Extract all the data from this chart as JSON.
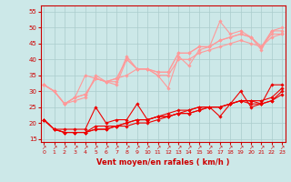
{
  "title": "",
  "xlabel": "Vent moyen/en rafales ( km/h )",
  "ylabel": "",
  "bg_color": "#cce8e8",
  "grid_color": "#aacccc",
  "x": [
    0,
    1,
    2,
    3,
    4,
    5,
    6,
    7,
    8,
    9,
    10,
    11,
    12,
    13,
    14,
    15,
    16,
    17,
    18,
    19,
    20,
    21,
    22,
    23
  ],
  "series_dark": [
    [
      21,
      18,
      18,
      18,
      18,
      25,
      20,
      21,
      21,
      26,
      21,
      22,
      23,
      24,
      24,
      25,
      25,
      22,
      26,
      30,
      25,
      26,
      32,
      32
    ],
    [
      21,
      18,
      17,
      17,
      17,
      19,
      19,
      19,
      20,
      21,
      21,
      22,
      22,
      23,
      23,
      24,
      25,
      25,
      26,
      27,
      27,
      27,
      28,
      31
    ],
    [
      21,
      18,
      17,
      17,
      17,
      18,
      18,
      19,
      20,
      21,
      21,
      22,
      22,
      23,
      24,
      25,
      25,
      25,
      26,
      27,
      27,
      26,
      27,
      30
    ],
    [
      21,
      18,
      17,
      17,
      17,
      18,
      18,
      19,
      19,
      20,
      20,
      21,
      22,
      23,
      23,
      24,
      25,
      25,
      26,
      27,
      26,
      26,
      27,
      29
    ]
  ],
  "series_light": [
    [
      32,
      30,
      26,
      27,
      28,
      35,
      33,
      32,
      40,
      37,
      37,
      35,
      31,
      41,
      38,
      43,
      44,
      52,
      48,
      49,
      47,
      43,
      49,
      50
    ],
    [
      32,
      30,
      26,
      28,
      35,
      34,
      33,
      33,
      41,
      37,
      37,
      36,
      36,
      42,
      42,
      44,
      44,
      46,
      47,
      48,
      47,
      44,
      49,
      49
    ],
    [
      32,
      30,
      26,
      28,
      29,
      34,
      33,
      34,
      40,
      37,
      37,
      36,
      36,
      42,
      42,
      44,
      44,
      46,
      47,
      48,
      47,
      44,
      48,
      48
    ],
    [
      32,
      30,
      26,
      28,
      29,
      34,
      33,
      34,
      35,
      37,
      37,
      35,
      35,
      40,
      40,
      42,
      43,
      44,
      45,
      46,
      45,
      44,
      47,
      48
    ]
  ],
  "dark_color": "#ee0000",
  "light_color": "#ff9999",
  "ylim": [
    14,
    57
  ],
  "yticks": [
    15,
    20,
    25,
    30,
    35,
    40,
    45,
    50,
    55
  ],
  "xticks": [
    0,
    1,
    2,
    3,
    4,
    5,
    6,
    7,
    8,
    9,
    10,
    11,
    12,
    13,
    14,
    15,
    16,
    17,
    18,
    19,
    20,
    21,
    22,
    23
  ],
  "marker": "D",
  "markersize": 1.8,
  "linewidth": 0.8
}
